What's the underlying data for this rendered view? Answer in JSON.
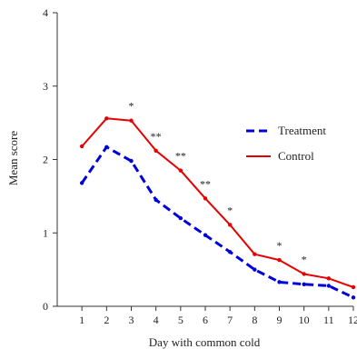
{
  "chart_data": {
    "type": "line",
    "title": "",
    "xlabel": "Day with common cold",
    "ylabel": "Mean score",
    "categories": [
      "1",
      "2",
      "3",
      "4",
      "5",
      "6",
      "7",
      "8",
      "9",
      "10",
      "11",
      "12"
    ],
    "x": [
      1,
      2,
      3,
      4,
      5,
      6,
      7,
      8,
      9,
      10,
      11,
      12
    ],
    "xlim": [
      0,
      12
    ],
    "ylim": [
      0,
      4
    ],
    "yticks": [
      "0",
      "1",
      "2",
      "3",
      "4"
    ],
    "grid": false,
    "legend_position": "right",
    "series": [
      {
        "name": "Treatment",
        "color": "#0000dd",
        "style": "dashed",
        "values": [
          1.68,
          2.17,
          1.98,
          1.45,
          1.2,
          0.97,
          0.74,
          0.5,
          0.33,
          0.3,
          0.28,
          0.12
        ]
      },
      {
        "name": "Control",
        "color": "#e60000",
        "style": "solid",
        "values": [
          2.18,
          2.56,
          2.53,
          2.12,
          1.85,
          1.47,
          1.11,
          0.71,
          0.63,
          0.44,
          0.38,
          0.26
        ]
      }
    ],
    "annotations": [
      {
        "x": 3,
        "text": "*"
      },
      {
        "x": 4,
        "text": "**"
      },
      {
        "x": 5,
        "text": "**"
      },
      {
        "x": 6,
        "text": "**"
      },
      {
        "x": 7,
        "text": "*"
      },
      {
        "x": 9,
        "text": "*"
      },
      {
        "x": 10,
        "text": "*"
      }
    ]
  }
}
